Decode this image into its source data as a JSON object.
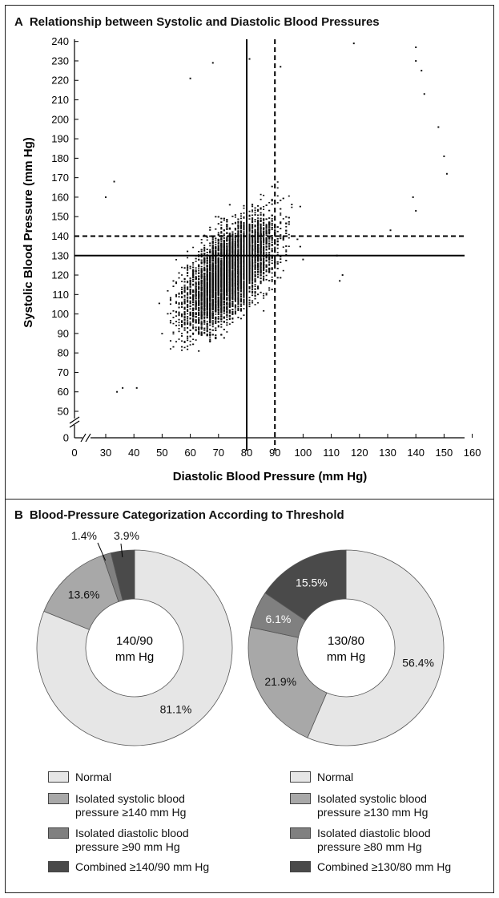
{
  "panel_a": {
    "letter": "A",
    "title": "Relationship between Systolic and Diastolic Blood Pressures"
  },
  "panel_b": {
    "letter": "B",
    "title": "Blood-Pressure Categorization According to Threshold"
  },
  "colors": {
    "normal": "#e6e6e6",
    "isolated_systolic": "#a8a8a8",
    "isolated_diastolic": "#808080",
    "combined": "#4a4a4a",
    "points": "#111111"
  },
  "chart_data": [
    {
      "type": "scatter",
      "title": "Relationship between Systolic and Diastolic Blood Pressures",
      "xlabel": "Diastolic Blood Pressure (mm Hg)",
      "ylabel": "Systolic Blood Pressure (mm Hg)",
      "xlim": [
        0,
        160
      ],
      "ylim": [
        0,
        240
      ],
      "x_axis_break": [
        0,
        30
      ],
      "y_axis_break": [
        0,
        50
      ],
      "x_ticks": [
        0,
        30,
        40,
        50,
        60,
        70,
        80,
        90,
        100,
        110,
        120,
        130,
        140,
        150,
        160
      ],
      "y_ticks": [
        0,
        50,
        60,
        70,
        80,
        90,
        100,
        110,
        120,
        130,
        140,
        150,
        160,
        170,
        180,
        190,
        200,
        210,
        220,
        230,
        240
      ],
      "grid": false,
      "density_note_points_approx": "dense cloud of tens of thousands of points between diastolic 30-150 and systolic 60-240, centered near 75/130",
      "reference_lines": [
        {
          "axis": "x",
          "value": 80,
          "style": "solid"
        },
        {
          "axis": "x",
          "value": 90,
          "style": "dashed"
        },
        {
          "axis": "y",
          "value": 130,
          "style": "solid"
        },
        {
          "axis": "y",
          "value": 140,
          "style": "dashed"
        }
      ],
      "outliers": [
        {
          "x": 30,
          "y": 160
        },
        {
          "x": 33,
          "y": 168
        },
        {
          "x": 118,
          "y": 239
        },
        {
          "x": 140,
          "y": 237
        },
        {
          "x": 140,
          "y": 230
        },
        {
          "x": 142,
          "y": 225
        },
        {
          "x": 143,
          "y": 213
        },
        {
          "x": 148,
          "y": 196
        },
        {
          "x": 150,
          "y": 181
        },
        {
          "x": 151,
          "y": 172
        },
        {
          "x": 139,
          "y": 160
        },
        {
          "x": 140,
          "y": 153
        },
        {
          "x": 131,
          "y": 143
        },
        {
          "x": 112,
          "y": 130
        },
        {
          "x": 114,
          "y": 120
        },
        {
          "x": 113,
          "y": 117
        },
        {
          "x": 100,
          "y": 128
        },
        {
          "x": 36,
          "y": 62
        },
        {
          "x": 34,
          "y": 60
        },
        {
          "x": 41,
          "y": 62
        },
        {
          "x": 60,
          "y": 221
        },
        {
          "x": 68,
          "y": 229
        },
        {
          "x": 81,
          "y": 231
        },
        {
          "x": 92,
          "y": 227
        }
      ]
    },
    {
      "type": "pie",
      "donut": true,
      "center_label": [
        "140/90",
        "mm Hg"
      ],
      "slices": [
        {
          "name": "Normal",
          "value": 81.1,
          "label": "81.1%"
        },
        {
          "name": "Isolated systolic blood pressure ≥140 mm Hg",
          "value": 13.6,
          "label": "13.6%"
        },
        {
          "name": "Isolated diastolic blood pressure ≥90 mm Hg",
          "value": 1.4,
          "label": "1.4%"
        },
        {
          "name": "Combined ≥140/90 mm Hg",
          "value": 3.9,
          "label": "3.9%"
        }
      ]
    },
    {
      "type": "pie",
      "donut": true,
      "center_label": [
        "130/80",
        "mm Hg"
      ],
      "slices": [
        {
          "name": "Normal",
          "value": 56.4,
          "label": "56.4%"
        },
        {
          "name": "Isolated systolic blood pressure ≥130 mm Hg",
          "value": 21.9,
          "label": "21.9%"
        },
        {
          "name": "Isolated diastolic blood pressure ≥80 mm Hg",
          "value": 6.1,
          "label": "6.1%"
        },
        {
          "name": "Combined ≥130/80 mm Hg",
          "value": 15.5,
          "label": "15.5%"
        }
      ]
    }
  ],
  "legend_left": [
    {
      "key": "normal",
      "lines": [
        "Normal"
      ]
    },
    {
      "key": "isolated_systolic",
      "lines": [
        "Isolated systolic blood",
        "pressure ≥140 mm Hg"
      ]
    },
    {
      "key": "isolated_diastolic",
      "lines": [
        "Isolated diastolic blood",
        "pressure ≥90 mm Hg"
      ]
    },
    {
      "key": "combined",
      "lines": [
        "Combined ≥140/90 mm Hg"
      ]
    }
  ],
  "legend_right": [
    {
      "key": "normal",
      "lines": [
        "Normal"
      ]
    },
    {
      "key": "isolated_systolic",
      "lines": [
        "Isolated systolic blood",
        "pressure ≥130 mm Hg"
      ]
    },
    {
      "key": "isolated_diastolic",
      "lines": [
        "Isolated diastolic blood",
        "pressure ≥80 mm Hg"
      ]
    },
    {
      "key": "combined",
      "lines": [
        "Combined ≥130/80 mm Hg"
      ]
    }
  ]
}
